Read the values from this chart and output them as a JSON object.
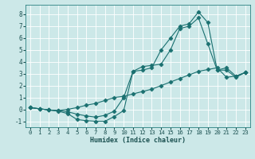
{
  "bg_color": "#cce8e8",
  "grid_color": "#ffffff",
  "line_color": "#1a7070",
  "xlabel": "Humidex (Indice chaleur)",
  "xlim": [
    -0.5,
    23.5
  ],
  "ylim": [
    -1.5,
    8.8
  ],
  "yticks": [
    -1,
    0,
    1,
    2,
    3,
    4,
    5,
    6,
    7,
    8
  ],
  "xticks": [
    0,
    1,
    2,
    3,
    4,
    5,
    6,
    7,
    8,
    9,
    10,
    11,
    12,
    13,
    14,
    15,
    16,
    17,
    18,
    19,
    20,
    21,
    22,
    23
  ],
  "line1_x": [
    0,
    1,
    2,
    3,
    4,
    5,
    6,
    7,
    8,
    9,
    10,
    11,
    12,
    13,
    14,
    15,
    16,
    17,
    18,
    19,
    20,
    21,
    22,
    23
  ],
  "line1_y": [
    0.15,
    0.05,
    -0.05,
    -0.15,
    -0.35,
    -0.85,
    -0.95,
    -1.0,
    -1.0,
    -0.6,
    -0.1,
    3.2,
    3.3,
    3.5,
    5.0,
    6.0,
    7.0,
    7.2,
    8.2,
    7.3,
    3.3,
    3.5,
    2.8,
    3.1
  ],
  "line2_x": [
    0,
    1,
    2,
    3,
    4,
    5,
    6,
    7,
    8,
    9,
    10,
    11,
    12,
    13,
    14,
    15,
    16,
    17,
    18,
    19,
    20,
    21,
    22,
    23
  ],
  "line2_y": [
    0.15,
    0.05,
    -0.05,
    -0.1,
    -0.2,
    -0.4,
    -0.55,
    -0.65,
    -0.5,
    -0.15,
    1.0,
    3.2,
    3.6,
    3.7,
    3.8,
    5.0,
    6.8,
    7.0,
    7.7,
    5.5,
    3.3,
    3.3,
    2.7,
    3.1
  ],
  "line3_x": [
    0,
    1,
    2,
    3,
    4,
    5,
    6,
    7,
    8,
    9,
    10,
    11,
    12,
    13,
    14,
    15,
    16,
    17,
    18,
    19,
    20,
    21,
    22,
    23
  ],
  "line3_y": [
    0.15,
    0.05,
    -0.05,
    -0.1,
    0.0,
    0.15,
    0.35,
    0.5,
    0.75,
    1.0,
    1.1,
    1.3,
    1.5,
    1.7,
    2.0,
    2.3,
    2.6,
    2.9,
    3.2,
    3.35,
    3.5,
    2.7,
    2.8,
    3.1
  ]
}
